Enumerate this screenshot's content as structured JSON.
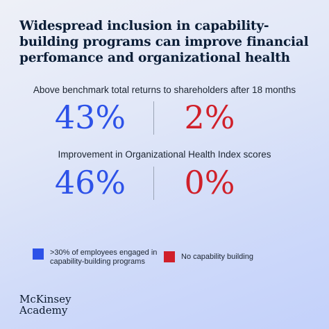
{
  "title": "Widespread inclusion in capability-building programs can improve financial perfomance and organizational health",
  "colors": {
    "blue": "#2d52e8",
    "red": "#d0202a"
  },
  "legend": [
    {
      "label": ">30% of employees engaged in capability-building programs",
      "color": "#2d52e8"
    },
    {
      "label": "No capability building",
      "color": "#d0202a"
    }
  ],
  "brand": {
    "line1": "McKinsey",
    "line2": "Academy"
  },
  "chart_data": {
    "type": "table",
    "series": [
      {
        "name": ">30% of employees engaged in capability-building programs",
        "values": [
          43,
          46
        ]
      },
      {
        "name": "No capability building",
        "values": [
          2,
          0
        ]
      }
    ],
    "metrics": [
      {
        "label": "Above benchmark total returns to shareholders after 18 months",
        "capability": "43%",
        "no_capability": "2%"
      },
      {
        "label": "Improvement in Organizational Health Index scores",
        "capability": "46%",
        "no_capability": "0%"
      }
    ]
  }
}
